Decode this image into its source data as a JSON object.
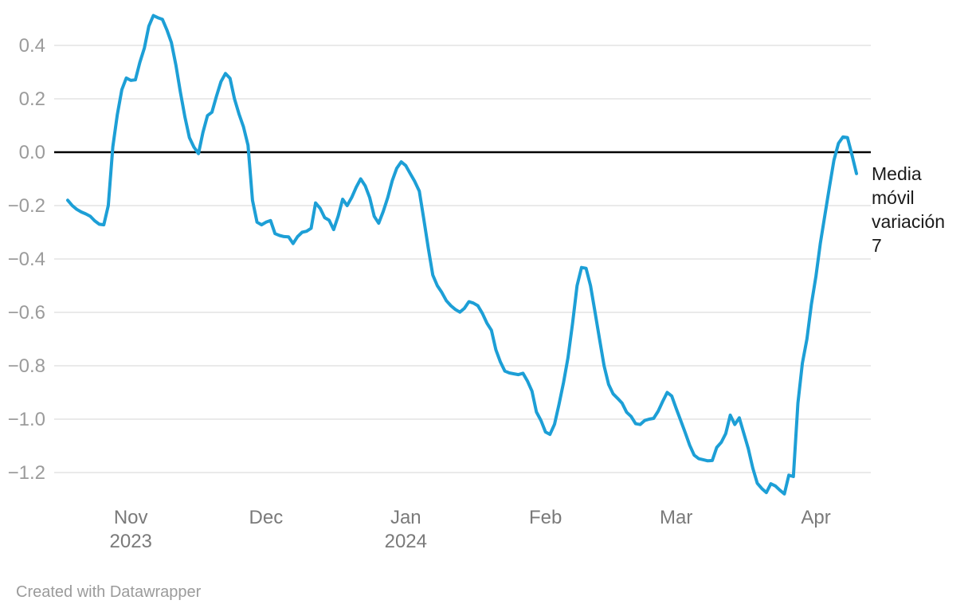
{
  "chart": {
    "series_label": "Media móvil variación 7",
    "line_color": "#1d9fd6",
    "zero_line_color": "#000000",
    "grid_color": "#e4e4e4",
    "y_label_color": "#9b9b9b",
    "x_label_color": "#7a7a7a",
    "series_label_color": "#1a1a1a"
  },
  "footer": {
    "credit": "Created with Datawrapper"
  },
  "chart_data": {
    "type": "line",
    "title": "",
    "xlabel": "",
    "ylabel": "",
    "grid": "horizontal",
    "legend_position": "right-of-line-end",
    "baseline": 0,
    "ylim": [
      -1.33,
      0.55
    ],
    "yticks": [
      0.4,
      0.2,
      0,
      -0.2,
      -0.4,
      -0.6,
      -0.8,
      -1.0,
      -1.2
    ],
    "ytick_labels": [
      "0.4",
      "0.2",
      "0.0",
      "−0.2",
      "−0.4",
      "−0.6",
      "−0.8",
      "−1.0",
      "−1.2"
    ],
    "xticks": [
      {
        "date": "2023-11-01",
        "label": "Nov",
        "sublabel": "2023"
      },
      {
        "date": "2023-12-01",
        "label": "Dec",
        "sublabel": ""
      },
      {
        "date": "2024-01-01",
        "label": "Jan",
        "sublabel": "2024"
      },
      {
        "date": "2024-02-01",
        "label": "Feb",
        "sublabel": ""
      },
      {
        "date": "2024-03-01",
        "label": "Mar",
        "sublabel": ""
      },
      {
        "date": "2024-04-01",
        "label": "Apr",
        "sublabel": ""
      }
    ],
    "start_date": "2023-10-18",
    "end_date": "2024-04-10",
    "interval": "daily",
    "series": [
      {
        "name": "Media móvil variación 7",
        "values": [
          -0.18,
          -0.2,
          -0.214,
          -0.224,
          -0.231,
          -0.24,
          -0.257,
          -0.27,
          -0.272,
          -0.2,
          0.02,
          0.14,
          0.234,
          0.278,
          0.269,
          0.271,
          0.336,
          0.39,
          0.472,
          0.512,
          0.504,
          0.498,
          0.458,
          0.411,
          0.326,
          0.225,
          0.132,
          0.055,
          0.019,
          -0.005,
          0.074,
          0.137,
          0.15,
          0.21,
          0.264,
          0.295,
          0.277,
          0.2,
          0.143,
          0.095,
          0.026,
          -0.18,
          -0.262,
          -0.272,
          -0.262,
          -0.256,
          -0.305,
          -0.312,
          -0.316,
          -0.317,
          -0.342,
          -0.316,
          -0.3,
          -0.296,
          -0.285,
          -0.19,
          -0.21,
          -0.245,
          -0.255,
          -0.29,
          -0.24,
          -0.176,
          -0.2,
          -0.17,
          -0.131,
          -0.1,
          -0.126,
          -0.17,
          -0.24,
          -0.266,
          -0.222,
          -0.17,
          -0.107,
          -0.06,
          -0.036,
          -0.05,
          -0.08,
          -0.11,
          -0.146,
          -0.25,
          -0.36,
          -0.46,
          -0.5,
          -0.525,
          -0.556,
          -0.575,
          -0.589,
          -0.599,
          -0.585,
          -0.56,
          -0.565,
          -0.575,
          -0.604,
          -0.64,
          -0.667,
          -0.74,
          -0.786,
          -0.82,
          -0.827,
          -0.83,
          -0.833,
          -0.828,
          -0.857,
          -0.895,
          -0.973,
          -1.005,
          -1.048,
          -1.057,
          -1.019,
          -0.945,
          -0.863,
          -0.77,
          -0.642,
          -0.5,
          -0.432,
          -0.435,
          -0.5,
          -0.6,
          -0.7,
          -0.8,
          -0.87,
          -0.905,
          -0.922,
          -0.94,
          -0.974,
          -0.99,
          -1.017,
          -1.02,
          -1.005,
          -1.0,
          -0.997,
          -0.97,
          -0.934,
          -0.9,
          -0.913,
          -0.96,
          -1.005,
          -1.05,
          -1.098,
          -1.135,
          -1.148,
          -1.152,
          -1.156,
          -1.155,
          -1.106,
          -1.087,
          -1.054,
          -0.985,
          -1.02,
          -0.995,
          -1.053,
          -1.11,
          -1.184,
          -1.24,
          -1.26,
          -1.275,
          -1.242,
          -1.25,
          -1.266,
          -1.28,
          -1.21,
          -1.215,
          -0.94,
          -0.79,
          -0.7,
          -0.57,
          -0.465,
          -0.34,
          -0.235,
          -0.13,
          -0.03,
          0.033,
          0.057,
          0.055,
          -0.01,
          -0.08
        ]
      }
    ]
  }
}
